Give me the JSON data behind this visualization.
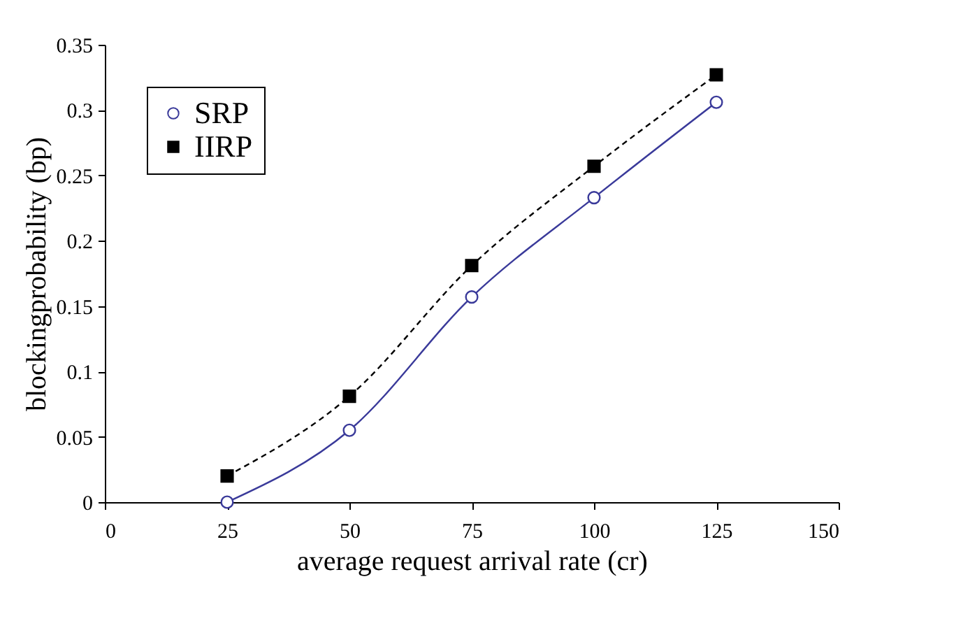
{
  "chart_data": {
    "type": "line",
    "xlabel": "average request arrival rate (cr)",
    "ylabel": "blockingprobability (bp)",
    "x": [
      25,
      50,
      75,
      100,
      125
    ],
    "series": [
      {
        "name": "SRP",
        "color": "#3a3a9a",
        "marker": "circle",
        "line_style": "solid",
        "values": [
          0,
          0.055,
          0.157,
          0.233,
          0.306
        ]
      },
      {
        "name": "IIRP",
        "color": "#000000",
        "marker": "square",
        "line_style": "dashed",
        "values": [
          0.02,
          0.081,
          0.181,
          0.257,
          0.327
        ]
      }
    ],
    "xlim": [
      0,
      150
    ],
    "xticks": [
      0,
      25,
      50,
      75,
      100,
      125,
      150
    ],
    "ylim": [
      0,
      0.35
    ],
    "yticks": [
      0,
      0.05,
      0.1,
      0.15,
      0.2,
      0.25,
      0.3,
      0.35
    ],
    "grid": false,
    "legend": "top left"
  }
}
